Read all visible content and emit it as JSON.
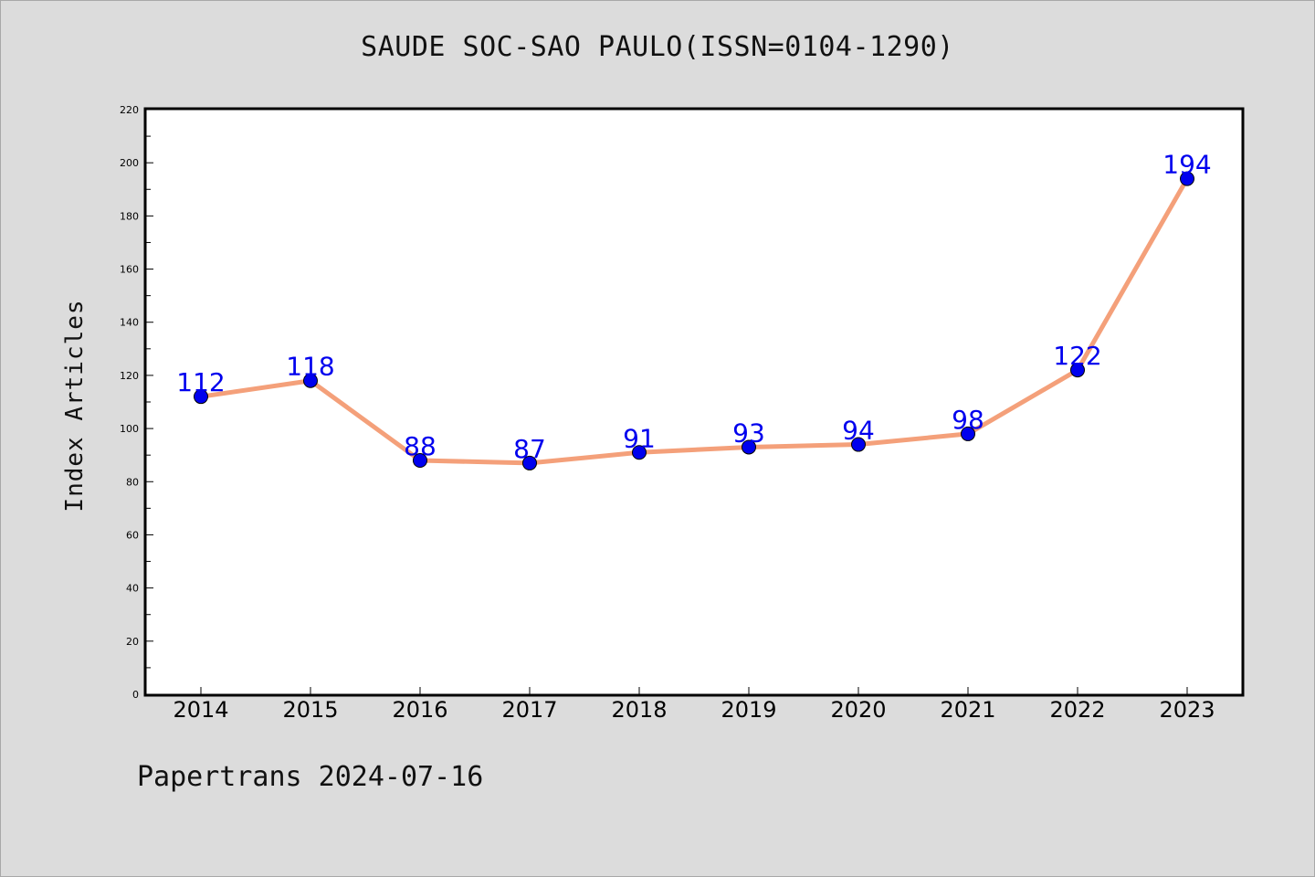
{
  "title": "SAUDE SOC-SAO PAULO(ISSN=0104-1290)",
  "footer": "Papertrans 2024-07-16",
  "colors": {
    "background": "#dcdcdc",
    "plot_bg": "#ffffff",
    "line": "#f4a07a",
    "marker": "#0000ee",
    "label": "#0000ee"
  },
  "chart_data": {
    "type": "line",
    "title": "SAUDE SOC-SAO PAULO(ISSN=0104-1290)",
    "xlabel": "",
    "ylabel": "Index Articles",
    "categories": [
      "2014",
      "2015",
      "2016",
      "2017",
      "2018",
      "2019",
      "2020",
      "2021",
      "2022",
      "2023"
    ],
    "series": [
      {
        "values": [
          112,
          118,
          88,
          87,
          91,
          93,
          94,
          98,
          122,
          194
        ]
      }
    ],
    "ylim": [
      0,
      220
    ],
    "yticks": [
      0,
      20,
      40,
      60,
      80,
      100,
      120,
      140,
      160,
      180,
      200,
      220
    ],
    "grid": false,
    "data_labels": true
  }
}
